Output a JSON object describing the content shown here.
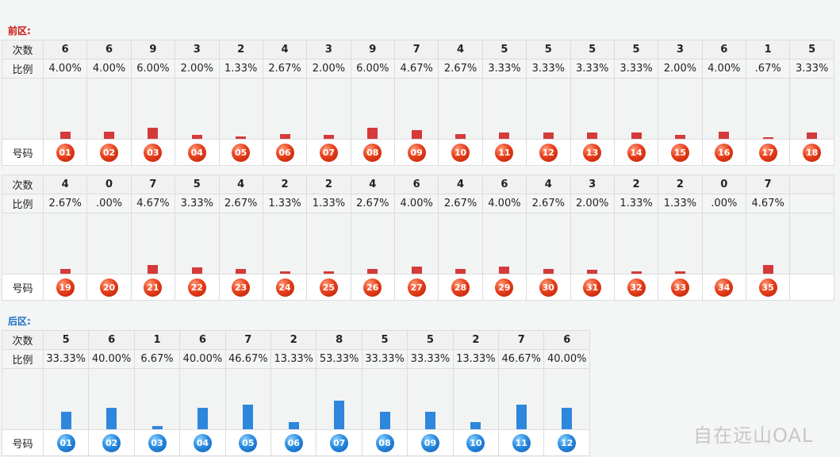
{
  "colors": {
    "front_title": "#cc1111",
    "back_title": "#1a6fc4",
    "front_bar": "#d43a3a",
    "back_bar": "#2f86dd"
  },
  "row_labels": {
    "count": "次数",
    "ratio": "比例",
    "number": "号码"
  },
  "front": {
    "title": "前区:",
    "groups": [
      {
        "numbers": [
          "01",
          "02",
          "03",
          "04",
          "05",
          "06",
          "07",
          "08",
          "09",
          "10",
          "11",
          "12",
          "13",
          "14",
          "15",
          "16",
          "17",
          "18"
        ],
        "counts": [
          "6",
          "6",
          "9",
          "3",
          "2",
          "4",
          "3",
          "9",
          "7",
          "4",
          "5",
          "5",
          "5",
          "5",
          "3",
          "6",
          "1",
          "5"
        ],
        "ratios": [
          "4.00%",
          "4.00%",
          "6.00%",
          "2.00%",
          "1.33%",
          "2.67%",
          "2.00%",
          "6.00%",
          "4.67%",
          "2.67%",
          "3.33%",
          "3.33%",
          "3.33%",
          "3.33%",
          "2.00%",
          "4.00%",
          ".67%",
          "3.33%"
        ]
      },
      {
        "numbers": [
          "19",
          "20",
          "21",
          "22",
          "23",
          "24",
          "25",
          "26",
          "27",
          "28",
          "29",
          "30",
          "31",
          "32",
          "33",
          "34",
          "35"
        ],
        "counts": [
          "4",
          "0",
          "7",
          "5",
          "4",
          "2",
          "2",
          "4",
          "6",
          "4",
          "6",
          "4",
          "3",
          "2",
          "2",
          "0",
          "7"
        ],
        "ratios": [
          "2.67%",
          ".00%",
          "4.67%",
          "3.33%",
          "2.67%",
          "1.33%",
          "1.33%",
          "2.67%",
          "4.00%",
          "2.67%",
          "4.00%",
          "2.67%",
          "2.00%",
          "1.33%",
          "1.33%",
          ".00%",
          "4.67%"
        ]
      }
    ]
  },
  "back": {
    "title": "后区:",
    "numbers": [
      "01",
      "02",
      "03",
      "04",
      "05",
      "06",
      "07",
      "08",
      "09",
      "10",
      "11",
      "12"
    ],
    "counts": [
      "5",
      "6",
      "1",
      "6",
      "7",
      "2",
      "8",
      "5",
      "5",
      "2",
      "7",
      "6"
    ],
    "ratios": [
      "33.33%",
      "40.00%",
      "6.67%",
      "40.00%",
      "46.67%",
      "13.33%",
      "53.33%",
      "33.33%",
      "33.33%",
      "13.33%",
      "46.67%",
      "40.00%"
    ]
  },
  "chart_data": [
    {
      "type": "bar",
      "title": "前区:",
      "categories": [
        "01",
        "02",
        "03",
        "04",
        "05",
        "06",
        "07",
        "08",
        "09",
        "10",
        "11",
        "12",
        "13",
        "14",
        "15",
        "16",
        "17",
        "18",
        "19",
        "20",
        "21",
        "22",
        "23",
        "24",
        "25",
        "26",
        "27",
        "28",
        "29",
        "30",
        "31",
        "32",
        "33",
        "34",
        "35"
      ],
      "values": [
        6,
        6,
        9,
        3,
        2,
        4,
        3,
        9,
        7,
        4,
        5,
        5,
        5,
        5,
        3,
        6,
        1,
        5,
        4,
        0,
        7,
        5,
        4,
        2,
        2,
        4,
        6,
        4,
        6,
        4,
        3,
        2,
        2,
        0,
        7
      ]
    },
    {
      "type": "bar",
      "title": "后区:",
      "categories": [
        "01",
        "02",
        "03",
        "04",
        "05",
        "06",
        "07",
        "08",
        "09",
        "10",
        "11",
        "12"
      ],
      "values": [
        5,
        6,
        1,
        6,
        7,
        2,
        8,
        5,
        5,
        2,
        7,
        6
      ]
    }
  ],
  "watermark": "自在远山OAL"
}
